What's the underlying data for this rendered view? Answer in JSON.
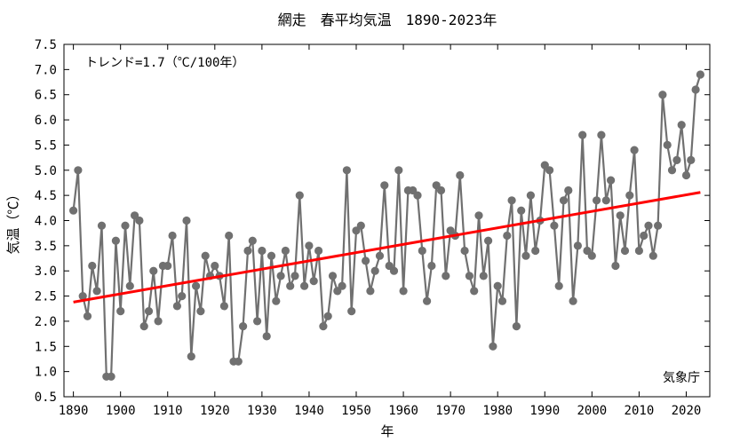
{
  "chart_data": {
    "type": "line",
    "title": "網走　春平均気温　1890-2023年",
    "xlabel": "年",
    "ylabel": "気温（℃）",
    "trend_label": "トレンド=1.7（℃/100年）",
    "source_label": "気象庁",
    "xlim": [
      1888,
      2025
    ],
    "ylim": [
      0.5,
      7.5
    ],
    "x_ticks": [
      1890,
      1900,
      1910,
      1920,
      1930,
      1940,
      1950,
      1960,
      1970,
      1980,
      1990,
      2000,
      2010,
      2020
    ],
    "y_ticks": [
      "0.5",
      "1.0",
      "1.5",
      "2.0",
      "2.5",
      "3.0",
      "3.5",
      "4.0",
      "4.5",
      "5.0",
      "5.5",
      "6.0",
      "6.5",
      "7.0",
      "7.5"
    ],
    "grid": false,
    "series": [
      {
        "color": "#707070",
        "x_start": 1890,
        "values": [
          4.2,
          5.0,
          2.5,
          2.1,
          3.1,
          2.6,
          3.9,
          0.9,
          0.9,
          3.6,
          2.2,
          3.9,
          2.7,
          4.1,
          4.0,
          1.9,
          2.2,
          3.0,
          2.0,
          3.1,
          3.1,
          3.7,
          2.3,
          2.5,
          4.0,
          1.3,
          2.7,
          2.2,
          3.3,
          2.9,
          3.1,
          2.9,
          2.3,
          3.7,
          1.2,
          1.2,
          1.9,
          3.4,
          3.6,
          2.0,
          3.4,
          1.7,
          3.3,
          2.4,
          2.9,
          3.4,
          2.7,
          2.9,
          4.5,
          2.7,
          3.5,
          2.8,
          3.4,
          1.9,
          2.1,
          2.9,
          2.6,
          2.7,
          5.0,
          2.2,
          3.8,
          3.9,
          3.2,
          2.6,
          3.0,
          3.3,
          4.7,
          3.1,
          3.0,
          5.0,
          2.6,
          4.6,
          4.6,
          4.5,
          3.4,
          2.4,
          3.1,
          4.7,
          4.6,
          2.9,
          3.8,
          3.7,
          4.9,
          3.4,
          2.9,
          2.6,
          4.1,
          2.9,
          3.6,
          1.5,
          2.7,
          2.4,
          3.7,
          4.4,
          1.9,
          4.2,
          3.3,
          4.5,
          3.4,
          4.0,
          5.1,
          5.0,
          3.9,
          2.7,
          4.4,
          4.6,
          2.4,
          3.5,
          5.7,
          3.4,
          3.3,
          4.4,
          5.7,
          4.4,
          4.8,
          3.1,
          4.1,
          3.4,
          4.5,
          5.4,
          3.4,
          3.7,
          3.9,
          3.3,
          3.9,
          6.5,
          5.5,
          5.0,
          5.2,
          5.9,
          4.9,
          5.2,
          6.6,
          6.9
        ]
      }
    ],
    "trend": {
      "color": "#ff0000",
      "x": [
        1890,
        2023
      ],
      "y": [
        2.38,
        4.56
      ]
    }
  }
}
